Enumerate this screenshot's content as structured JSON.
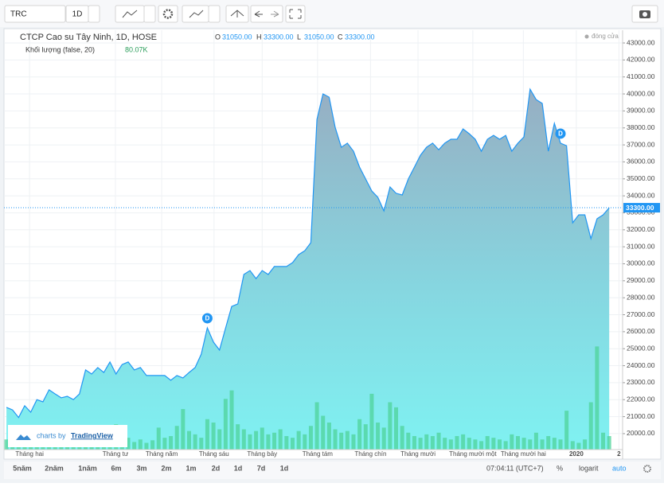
{
  "toolbar": {
    "symbol": "TRC",
    "interval": "1D"
  },
  "chart_data": {
    "type": "area",
    "title": "CTCP Cao su Tây Ninh, 1D, HOSE",
    "ohlc": [
      {
        "key": "O",
        "value": "31050.00"
      },
      {
        "key": "H",
        "value": "33300.00"
      },
      {
        "key": "L",
        "value": "31050.00"
      },
      {
        "key": "C",
        "value": "33300.00"
      }
    ],
    "series": [
      {
        "name": "đóng cửa",
        "color": "#2196f3",
        "values": [
          21550,
          21400,
          20950,
          21640,
          21260,
          22000,
          21870,
          22580,
          22340,
          22110,
          22200,
          22000,
          22340,
          23750,
          23510,
          23890,
          23600,
          24220,
          23510,
          24070,
          24220,
          23750,
          23890,
          23420,
          23420,
          23420,
          23420,
          23140,
          23420,
          23280,
          23600,
          23890,
          24680,
          26230,
          25390,
          24920,
          26230,
          27490,
          27640,
          29370,
          29600,
          29130,
          29600,
          29370,
          29840,
          29840,
          29840,
          30070,
          30540,
          30770,
          31240,
          38500,
          40000,
          39810,
          38030,
          36860,
          37100,
          36630,
          35690,
          34990,
          34290,
          33910,
          33110,
          34520,
          34150,
          34050,
          34990,
          35690,
          36390,
          36860,
          37100,
          36720,
          37100,
          37330,
          37330,
          37940,
          37660,
          37330,
          36630,
          37330,
          37560,
          37330,
          37560,
          36630,
          37100,
          37470,
          40280,
          39670,
          39440,
          36630,
          38270,
          37100,
          36950,
          32410,
          32880,
          32880,
          31480,
          32650,
          32880,
          33300
        ]
      }
    ],
    "volume": {
      "name": "Khối lượng (false, 20)",
      "color": "#4fd39a",
      "vlim": [
        0,
        800
      ],
      "last_label": "80.07K",
      "values": [
        60,
        40,
        30,
        90,
        50,
        40,
        45,
        30,
        60,
        55,
        50,
        40,
        35,
        120,
        60,
        55,
        40,
        80,
        150,
        90,
        70,
        45,
        60,
        40,
        55,
        130,
        70,
        80,
        140,
        240,
        110,
        90,
        70,
        180,
        160,
        120,
        300,
        350,
        150,
        120,
        90,
        110,
        130,
        90,
        100,
        120,
        80,
        70,
        110,
        90,
        140,
        280,
        200,
        160,
        120,
        100,
        110,
        90,
        180,
        150,
        330,
        160,
        130,
        280,
        250,
        140,
        100,
        80,
        70,
        90,
        80,
        100,
        70,
        60,
        80,
        90,
        70,
        60,
        50,
        80,
        70,
        60,
        50,
        90,
        80,
        70,
        60,
        100,
        60,
        80,
        70,
        60,
        230,
        50,
        40,
        60,
        280,
        610,
        100,
        80.07
      ]
    },
    "markers": [
      {
        "label": "D",
        "at": 33
      },
      {
        "label": "D",
        "at": 91
      }
    ],
    "last_price": {
      "value": 33300,
      "label": "33300.00"
    },
    "xlim": [
      -0.4,
      101.2
    ],
    "xticks": [
      {
        "value": 3.8,
        "label": "Tháng hai"
      },
      {
        "value": 17.9,
        "label": "Tháng tư"
      },
      {
        "value": 25.5,
        "label": "Tháng năm"
      },
      {
        "value": 34.1,
        "label": "Tháng sáu"
      },
      {
        "value": 42,
        "label": "Tháng bảy"
      },
      {
        "value": 51.1,
        "label": "Tháng tám"
      },
      {
        "value": 59.8,
        "label": "Tháng chín"
      },
      {
        "value": 67.6,
        "label": "Tháng mười"
      },
      {
        "value": 76.6,
        "label": "Tháng mười một"
      },
      {
        "value": 84.9,
        "label": "Tháng mười hai"
      },
      {
        "value": 93.6,
        "label": "2020"
      },
      {
        "value": 100.6,
        "label": "2"
      }
    ],
    "ylim": [
      19060,
      43750
    ],
    "yticks": [
      {
        "value": 20000,
        "label": "20000.00"
      },
      {
        "value": 21000,
        "label": "21000.00"
      },
      {
        "value": 22000,
        "label": "22000.00"
      },
      {
        "value": 23000,
        "label": "23000.00"
      },
      {
        "value": 24000,
        "label": "24000.00"
      },
      {
        "value": 25000,
        "label": "25000.00"
      },
      {
        "value": 26000,
        "label": "26000.00"
      },
      {
        "value": 27000,
        "label": "27000.00"
      },
      {
        "value": 28000,
        "label": "28000.00"
      },
      {
        "value": 29000,
        "label": "29000.00"
      },
      {
        "value": 30000,
        "label": "30000.00"
      },
      {
        "value": 31000,
        "label": "31000.00"
      },
      {
        "value": 32000,
        "label": "32000.00"
      },
      {
        "value": 33000,
        "label": "33000.00"
      },
      {
        "value": 34000,
        "label": "34000.00"
      },
      {
        "value": 35000,
        "label": "35000.00"
      },
      {
        "value": 36000,
        "label": "36000.00"
      },
      {
        "value": 37000,
        "label": "37000.00"
      },
      {
        "value": 38000,
        "label": "38000.00"
      },
      {
        "value": 39000,
        "label": "39000.00"
      },
      {
        "value": 40000,
        "label": "40000.00"
      },
      {
        "value": 41000,
        "label": "41000.00"
      },
      {
        "value": 42000,
        "label": "42000.00"
      },
      {
        "value": 43000,
        "label": "43000.00"
      }
    ],
    "grid": true
  },
  "range_buttons": [
    "5năm",
    "2năm",
    "1năm",
    "6m",
    "3m",
    "2m",
    "1m",
    "2d",
    "1d",
    "7d",
    "1d"
  ],
  "footer": {
    "time": "07:04:11 (UTC+7)",
    "percent": "%",
    "log": "logarit",
    "auto": "auto"
  },
  "watermark": {
    "prefix": "charts by",
    "brand": "TradingView"
  }
}
